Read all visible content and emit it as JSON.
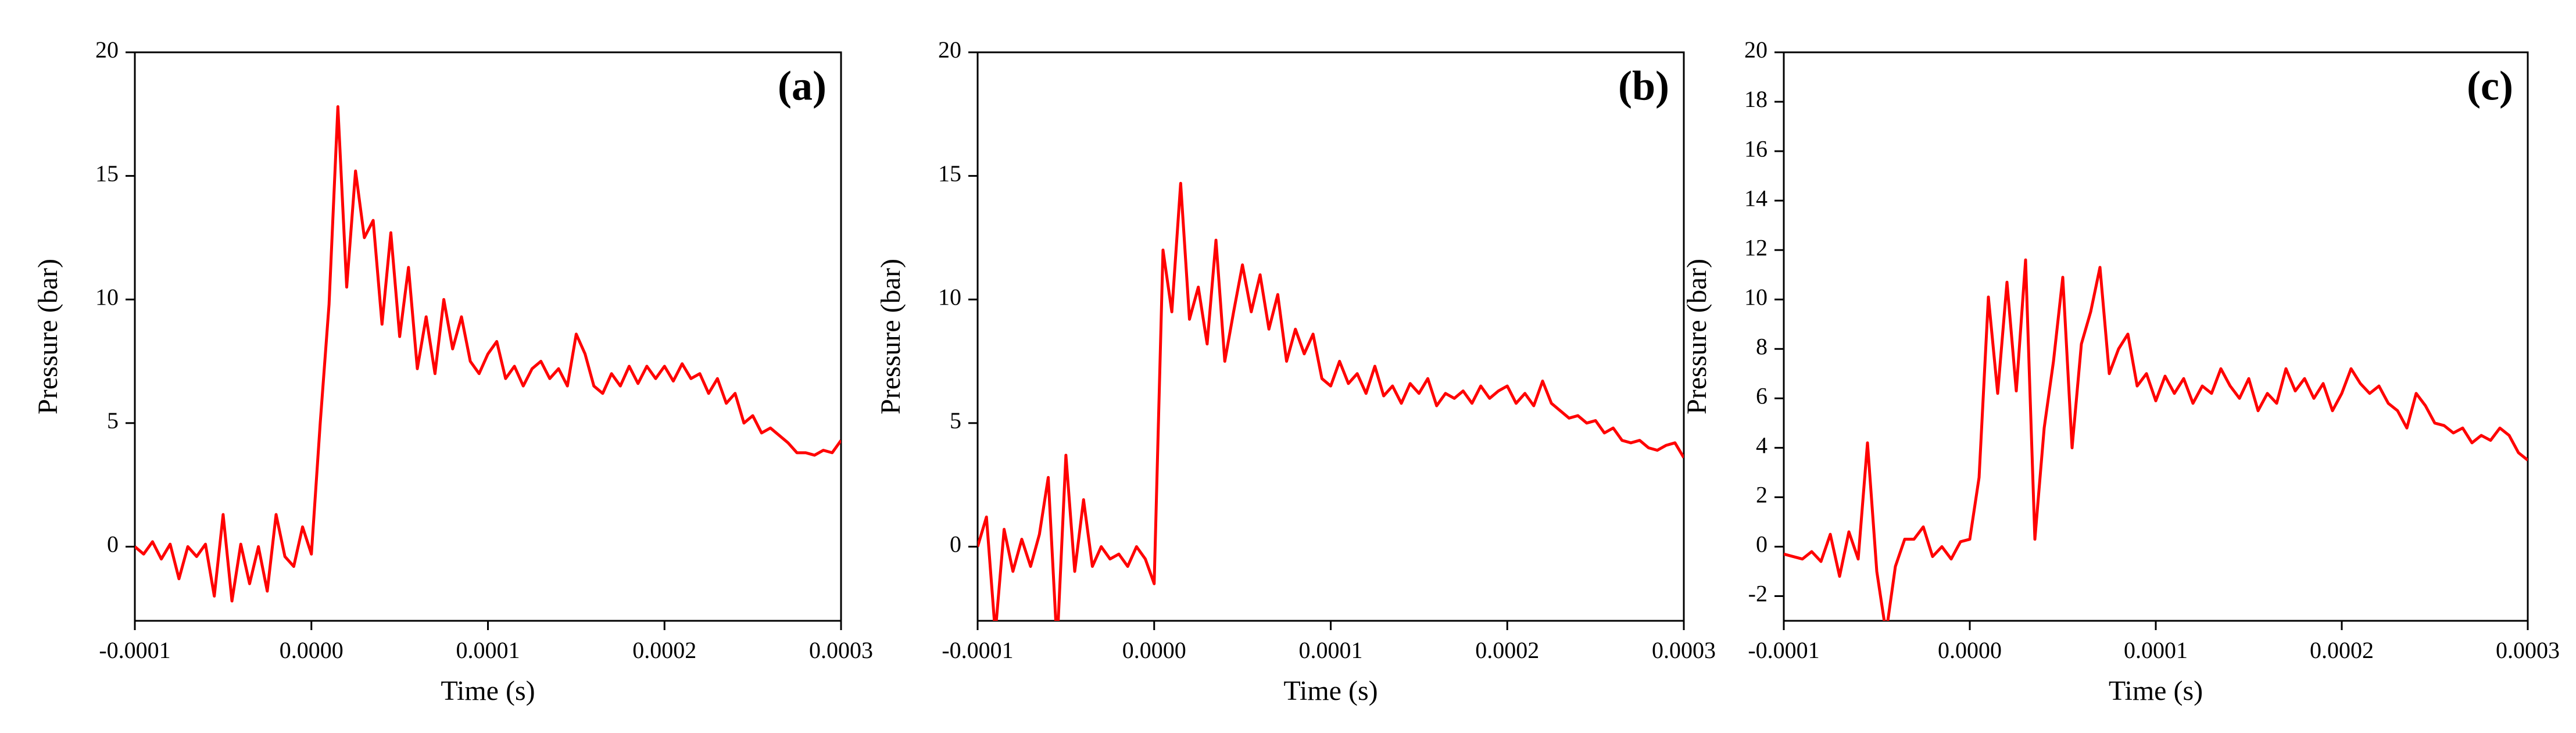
{
  "chart_data": [
    {
      "type": "line",
      "annotation": "(a)",
      "xlabel": "Time (s)",
      "ylabel": "Pressure (bar)",
      "color": "#ff0000",
      "xlim": [
        -0.0001,
        0.0003
      ],
      "xticks": [
        -0.0001,
        {
          "value": 0,
          "label": "0.0000"
        },
        0.0001,
        0.0002,
        0.0003
      ],
      "ylim": [
        -3,
        20
      ],
      "yticks": [
        0,
        5,
        10,
        15,
        20
      ],
      "x": [
        -0.0001,
        -9.5e-05,
        -9e-05,
        -8.5e-05,
        -8e-05,
        -7.5e-05,
        -7e-05,
        -6.5e-05,
        -6e-05,
        -5.5e-05,
        -5e-05,
        -4.5e-05,
        -4e-05,
        -3.5e-05,
        -3e-05,
        -2.5e-05,
        -2e-05,
        -1.5e-05,
        -1e-05,
        -5e-06,
        0,
        5e-06,
        1e-05,
        1.5e-05,
        2e-05,
        2.5e-05,
        3e-05,
        3.5e-05,
        4e-05,
        4.5e-05,
        5e-05,
        5.5e-05,
        6e-05,
        6.5e-05,
        7e-05,
        7.5e-05,
        8e-05,
        8.5e-05,
        9e-05,
        9.5e-05,
        0.0001,
        0.000105,
        0.00011,
        0.000115,
        0.00012,
        0.000125,
        0.00013,
        0.000135,
        0.00014,
        0.000145,
        0.00015,
        0.000155,
        0.00016,
        0.000165,
        0.00017,
        0.000175,
        0.00018,
        0.000185,
        0.00019,
        0.000195,
        0.0002,
        0.000205,
        0.00021,
        0.000215,
        0.00022,
        0.000225,
        0.00023,
        0.000235,
        0.00024,
        0.000245,
        0.00025,
        0.000255,
        0.00026,
        0.000265,
        0.00027,
        0.000275,
        0.00028,
        0.000285,
        0.00029,
        0.000295,
        0.0003
      ],
      "values": [
        0,
        -0.3,
        0.2,
        -0.5,
        0.1,
        -1.3,
        0,
        -0.4,
        0.1,
        -2.0,
        1.3,
        -2.2,
        0.1,
        -1.5,
        0,
        -1.8,
        1.3,
        -0.4,
        -0.8,
        0.8,
        -0.3,
        5.0,
        9.8,
        17.8,
        10.5,
        15.2,
        12.5,
        13.2,
        9,
        12.7,
        8.5,
        11.3,
        7.2,
        9.3,
        7,
        10,
        8,
        9.3,
        7.5,
        7,
        7.8,
        8.3,
        6.8,
        7.3,
        6.5,
        7.2,
        7.5,
        6.8,
        7.2,
        6.5,
        8.6,
        7.8,
        6.5,
        6.2,
        7,
        6.5,
        7.3,
        6.6,
        7.3,
        6.8,
        7.3,
        6.7,
        7.4,
        6.8,
        7,
        6.2,
        6.8,
        5.8,
        6.2,
        5,
        5.3,
        4.6,
        4.8,
        4.5,
        4.2,
        3.8,
        3.8,
        3.7,
        3.9,
        3.8,
        4.3
      ]
    },
    {
      "type": "line",
      "annotation": "(b)",
      "xlabel": "Time (s)",
      "ylabel": "Pressure (bar)",
      "color": "#ff0000",
      "xlim": [
        -0.0001,
        0.0003
      ],
      "xticks": [
        -0.0001,
        {
          "value": 0,
          "label": "0.0000"
        },
        0.0001,
        0.0002,
        0.0003
      ],
      "ylim": [
        -3,
        20
      ],
      "yticks": [
        0,
        5,
        10,
        15,
        20
      ],
      "x": [
        -0.0001,
        -9.5e-05,
        -9e-05,
        -8.5e-05,
        -8e-05,
        -7.5e-05,
        -7e-05,
        -6.5e-05,
        -6e-05,
        -5.5e-05,
        -5e-05,
        -4.5e-05,
        -4e-05,
        -3.5e-05,
        -3e-05,
        -2.5e-05,
        -2e-05,
        -1.5e-05,
        -1e-05,
        -5e-06,
        0,
        5e-06,
        1e-05,
        1.5e-05,
        2e-05,
        2.5e-05,
        3e-05,
        3.5e-05,
        4e-05,
        4.5e-05,
        5e-05,
        5.5e-05,
        6e-05,
        6.5e-05,
        7e-05,
        7.5e-05,
        8e-05,
        8.5e-05,
        9e-05,
        9.5e-05,
        0.0001,
        0.000105,
        0.00011,
        0.000115,
        0.00012,
        0.000125,
        0.00013,
        0.000135,
        0.00014,
        0.000145,
        0.00015,
        0.000155,
        0.00016,
        0.000165,
        0.00017,
        0.000175,
        0.00018,
        0.000185,
        0.00019,
        0.000195,
        0.0002,
        0.000205,
        0.00021,
        0.000215,
        0.00022,
        0.000225,
        0.00023,
        0.000235,
        0.00024,
        0.000245,
        0.00025,
        0.000255,
        0.00026,
        0.000265,
        0.00027,
        0.000275,
        0.00028,
        0.000285,
        0.00029,
        0.000295,
        0.0003
      ],
      "values": [
        0,
        1.2,
        -3.5,
        0.7,
        -1,
        0.3,
        -0.8,
        0.5,
        2.8,
        -4,
        3.7,
        -1,
        1.9,
        -0.8,
        0,
        -0.5,
        -0.3,
        -0.8,
        0,
        -0.5,
        -1.5,
        12,
        9.5,
        14.7,
        9.2,
        10.5,
        8.2,
        12.4,
        7.5,
        9.5,
        11.4,
        9.5,
        11,
        8.8,
        10.2,
        7.5,
        8.8,
        7.8,
        8.6,
        6.8,
        6.5,
        7.5,
        6.6,
        7,
        6.2,
        7.3,
        6.1,
        6.5,
        5.8,
        6.6,
        6.2,
        6.8,
        5.7,
        6.2,
        6,
        6.3,
        5.8,
        6.5,
        6,
        6.3,
        6.5,
        5.8,
        6.2,
        5.7,
        6.7,
        5.8,
        5.5,
        5.2,
        5.3,
        5,
        5.1,
        4.6,
        4.8,
        4.3,
        4.2,
        4.3,
        4,
        3.9,
        4.1,
        4.2,
        3.6
      ]
    },
    {
      "type": "line",
      "annotation": "(c)",
      "xlabel": "Time (s)",
      "ylabel": "Pressure (bar)",
      "color": "#ff0000",
      "xlim": [
        -0.0001,
        0.0003
      ],
      "xticks": [
        -0.0001,
        {
          "value": 0,
          "label": "0.0000"
        },
        0.0001,
        0.0002,
        0.0003
      ],
      "ylim": [
        -3,
        20
      ],
      "yticks": [
        -2,
        0,
        2,
        4,
        6,
        8,
        10,
        12,
        14,
        16,
        18,
        20
      ],
      "x": [
        -0.0001,
        -9.5e-05,
        -9e-05,
        -8.5e-05,
        -8e-05,
        -7.5e-05,
        -7e-05,
        -6.5e-05,
        -6e-05,
        -5.5e-05,
        -5e-05,
        -4.5e-05,
        -4e-05,
        -3.5e-05,
        -3e-05,
        -2.5e-05,
        -2e-05,
        -1.5e-05,
        -1e-05,
        -5e-06,
        0,
        5e-06,
        1e-05,
        1.5e-05,
        2e-05,
        2.5e-05,
        3e-05,
        3.5e-05,
        4e-05,
        4.5e-05,
        5e-05,
        5.5e-05,
        6e-05,
        6.5e-05,
        7e-05,
        7.5e-05,
        8e-05,
        8.5e-05,
        9e-05,
        9.5e-05,
        0.0001,
        0.000105,
        0.00011,
        0.000115,
        0.00012,
        0.000125,
        0.00013,
        0.000135,
        0.00014,
        0.000145,
        0.00015,
        0.000155,
        0.00016,
        0.000165,
        0.00017,
        0.000175,
        0.00018,
        0.000185,
        0.00019,
        0.000195,
        0.0002,
        0.000205,
        0.00021,
        0.000215,
        0.00022,
        0.000225,
        0.00023,
        0.000235,
        0.00024,
        0.000245,
        0.00025,
        0.000255,
        0.00026,
        0.000265,
        0.00027,
        0.000275,
        0.00028,
        0.000285,
        0.00029,
        0.000295,
        0.0003
      ],
      "values": [
        -0.3,
        -0.4,
        -0.5,
        -0.2,
        -0.6,
        0.5,
        -1.2,
        0.6,
        -0.5,
        4.2,
        -1,
        -3.5,
        -0.8,
        0.3,
        0.3,
        0.8,
        -0.4,
        0,
        -0.5,
        0.2,
        0.3,
        2.8,
        10.1,
        6.2,
        10.7,
        6.3,
        11.6,
        0.3,
        4.8,
        7.5,
        10.9,
        4,
        8.2,
        9.5,
        11.3,
        7,
        8,
        8.6,
        6.5,
        7,
        5.9,
        6.9,
        6.2,
        6.8,
        5.8,
        6.5,
        6.2,
        7.2,
        6.5,
        6,
        6.8,
        5.5,
        6.2,
        5.8,
        7.2,
        6.3,
        6.8,
        6,
        6.6,
        5.5,
        6.2,
        7.2,
        6.6,
        6.2,
        6.5,
        5.8,
        5.5,
        4.8,
        6.2,
        5.7,
        5,
        4.9,
        4.6,
        4.8,
        4.2,
        4.5,
        4.3,
        4.8,
        4.5,
        3.8,
        3.5
      ]
    }
  ]
}
